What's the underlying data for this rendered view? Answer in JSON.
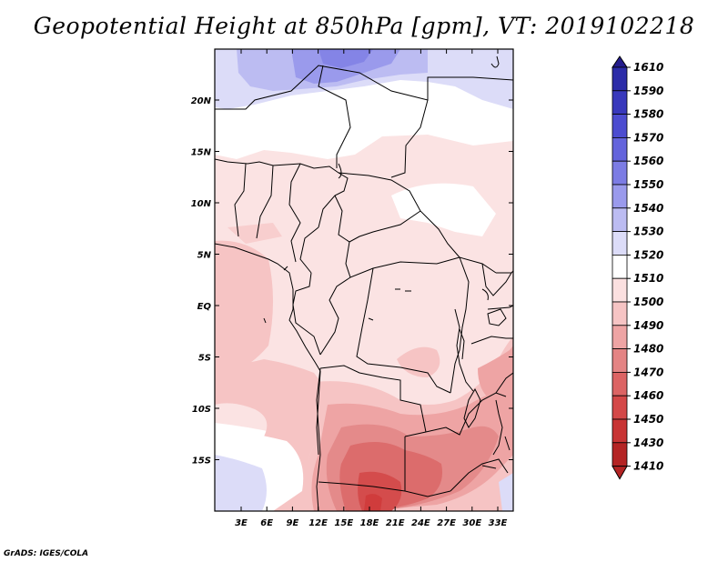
{
  "title": "Geopotential Height at 850hPa [gpm], VT: 2019102218",
  "credit": "GrADS: IGES/COLA",
  "lat_labels": [
    "20N",
    "15N",
    "10N",
    "5N",
    "EQ",
    "5S",
    "10S",
    "15S"
  ],
  "lon_labels": [
    "3E",
    "6E",
    "9E",
    "12E",
    "15E",
    "18E",
    "21E",
    "24E",
    "27E",
    "30E",
    "33E"
  ],
  "colorbar": {
    "levels": [
      "1610",
      "1590",
      "1580",
      "1570",
      "1560",
      "1550",
      "1540",
      "1530",
      "1520",
      "1510",
      "1500",
      "1490",
      "1480",
      "1470",
      "1460",
      "1450",
      "1430",
      "1410"
    ],
    "colors": [
      "#241c8c",
      "#2c2ca8",
      "#3838bc",
      "#4c4cd0",
      "#6464dc",
      "#7c7ce4",
      "#9a9aec",
      "#bcbcf2",
      "#dcdcf8",
      "#ffffff",
      "#fbe0e0",
      "#f6c4c4",
      "#eea4a4",
      "#e48484",
      "#dc6464",
      "#d44848",
      "#c83434",
      "#b42424",
      "#b42424"
    ]
  }
}
